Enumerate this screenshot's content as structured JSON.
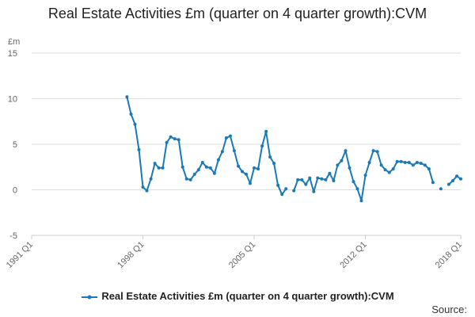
{
  "chart_data": {
    "type": "line",
    "title": "Real Estate Activities £m (quarter on 4 quarter growth):CVM",
    "unit_label": "£m",
    "xlabel": "",
    "ylabel": "",
    "ylim": [
      -5,
      15
    ],
    "yticks": [
      "15",
      "10",
      "5",
      "0",
      "-5"
    ],
    "xlim": [
      "1991 Q1",
      "2018 Q1"
    ],
    "xticks": [
      "1991 Q1",
      "1998 Q1",
      "2005 Q1",
      "2012 Q1",
      "2018 Q1"
    ],
    "grid": "horizontal",
    "legend_position": "bottom",
    "source_label": "Source:",
    "colors": {
      "series": "#1a7ab7",
      "grid": "#dddddd",
      "axis": "#cccccc"
    },
    "series": [
      {
        "name": "Real Estate Activities £m (quarter on 4 quarter growth):CVM",
        "x": [
          "1997 Q1",
          "1997 Q2",
          "1997 Q3",
          "1997 Q4",
          "1998 Q1",
          "1998 Q2",
          "1998 Q3",
          "1998 Q4",
          "1999 Q1",
          "1999 Q2",
          "1999 Q3",
          "1999 Q4",
          "2000 Q1",
          "2000 Q2",
          "2000 Q3",
          "2000 Q4",
          "2001 Q1",
          "2001 Q2",
          "2001 Q3",
          "2001 Q4",
          "2002 Q1",
          "2002 Q2",
          "2002 Q3",
          "2002 Q4",
          "2003 Q1",
          "2003 Q2",
          "2003 Q3",
          "2003 Q4",
          "2004 Q1",
          "2004 Q2",
          "2004 Q3",
          "2004 Q4",
          "2005 Q1",
          "2005 Q2",
          "2005 Q3",
          "2005 Q4",
          "2006 Q1",
          "2006 Q2",
          "2006 Q3",
          "2006 Q4",
          "2007 Q1",
          "2007 Q2",
          "2007 Q3",
          "2007 Q4",
          "2008 Q1",
          "2008 Q2",
          "2008 Q3",
          "2008 Q4",
          "2009 Q1",
          "2009 Q2",
          "2009 Q3",
          "2009 Q4",
          "2010 Q1",
          "2010 Q2",
          "2010 Q3",
          "2010 Q4",
          "2011 Q1",
          "2011 Q2",
          "2011 Q3",
          "2011 Q4",
          "2012 Q1",
          "2012 Q2",
          "2012 Q3",
          "2012 Q4",
          "2013 Q1",
          "2013 Q2",
          "2013 Q3",
          "2013 Q4",
          "2014 Q1",
          "2014 Q2",
          "2014 Q3",
          "2014 Q4",
          "2015 Q1",
          "2015 Q2",
          "2015 Q3",
          "2015 Q4",
          "2016 Q1",
          "2016 Q2",
          "2016 Q3",
          "2016 Q4",
          "2017 Q1",
          "2017 Q2",
          "2017 Q3",
          "2017 Q4",
          "2018 Q1"
        ],
        "values": [
          10.2,
          8.3,
          7.2,
          4.4,
          0.3,
          -0.1,
          1.2,
          2.9,
          2.4,
          2.4,
          5.2,
          5.8,
          5.6,
          5.5,
          2.5,
          1.2,
          1.1,
          1.7,
          2.2,
          3.0,
          2.5,
          2.4,
          1.8,
          3.3,
          4.2,
          5.7,
          5.9,
          4.3,
          2.6,
          2.0,
          1.7,
          0.7,
          2.4,
          2.3,
          4.8,
          6.4,
          3.6,
          2.9,
          0.5,
          -0.5,
          0.1,
          null,
          -0.1,
          1.1,
          1.1,
          0.6,
          1.3,
          -0.2,
          1.3,
          1.2,
          1.1,
          1.8,
          1.0,
          2.7,
          3.2,
          4.3,
          2.4,
          0.9,
          0.1,
          -1.2,
          1.6,
          3.0,
          4.3,
          4.2,
          2.7,
          2.2,
          1.9,
          2.3,
          3.1,
          3.1,
          3.0,
          3.0,
          2.7,
          3.0,
          2.9,
          2.7,
          2.3,
          0.8,
          null,
          0.1,
          null,
          0.6,
          1.0,
          1.5,
          1.2
        ]
      }
    ]
  }
}
